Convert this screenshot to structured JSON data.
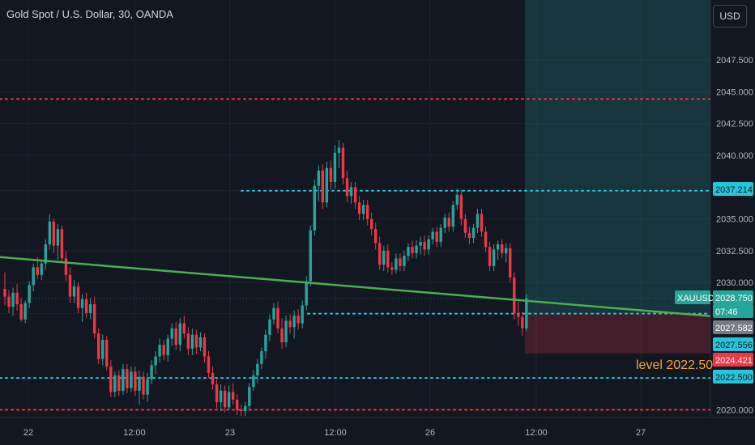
{
  "title": "Gold Spot / U.S. Dollar, 30, OANDA",
  "currency_button": "USD",
  "colors": {
    "background": "#131722",
    "up": "#26a69a",
    "down": "#f23645",
    "trendline": "#4caf50",
    "level_cyan": "#26c6da",
    "level_red": "#f23645",
    "annotation": "#f7a533"
  },
  "chart_data": {
    "type": "candlestick",
    "symbol": "XAUUSD",
    "timeframe": "30",
    "ylim": [
      2019.5,
      2049.9
    ],
    "y_ticks": [
      "2020.000",
      "2022.500",
      "2027.556",
      "2030.000",
      "2032.500",
      "2035.000",
      "2037.214",
      "2040.000",
      "2042.500",
      "2045.000",
      "2047.500"
    ],
    "x_ticks": [
      "22",
      "12:00",
      "23",
      "12:00",
      "26",
      "12:00",
      "27"
    ],
    "candles": [
      [
        2029.5,
        2030.8,
        2028.2,
        2028.9
      ],
      [
        2028.9,
        2029.4,
        2027.6,
        2028.1
      ],
      [
        2028.1,
        2029.6,
        2027.4,
        2029.2
      ],
      [
        2029.2,
        2029.9,
        2027.8,
        2028.3
      ],
      [
        2028.3,
        2028.8,
        2026.9,
        2027.1
      ],
      [
        2027.1,
        2028.6,
        2026.8,
        2028.4
      ],
      [
        2028.4,
        2030.1,
        2028.0,
        2029.8
      ],
      [
        2029.8,
        2031.5,
        2029.3,
        2031.2
      ],
      [
        2031.2,
        2032.0,
        2030.3,
        2030.6
      ],
      [
        2030.6,
        2031.8,
        2030.2,
        2031.5
      ],
      [
        2031.5,
        2033.4,
        2031.0,
        2033.0
      ],
      [
        2033.0,
        2035.4,
        2032.6,
        2034.8
      ],
      [
        2034.8,
        2035.0,
        2032.3,
        2032.9
      ],
      [
        2032.9,
        2034.6,
        2031.8,
        2034.2
      ],
      [
        2034.2,
        2034.5,
        2031.6,
        2031.9
      ],
      [
        2031.9,
        2032.5,
        2030.1,
        2030.6
      ],
      [
        2030.6,
        2031.2,
        2028.4,
        2028.9
      ],
      [
        2028.9,
        2030.2,
        2028.4,
        2029.7
      ],
      [
        2029.7,
        2030.0,
        2027.6,
        2028.0
      ],
      [
        2028.0,
        2029.1,
        2026.9,
        2028.7
      ],
      [
        2028.7,
        2029.2,
        2027.2,
        2027.6
      ],
      [
        2027.6,
        2028.8,
        2027.1,
        2028.3
      ],
      [
        2028.3,
        2028.9,
        2025.6,
        2026.0
      ],
      [
        2026.0,
        2026.4,
        2023.6,
        2024.0
      ],
      [
        2024.0,
        2025.9,
        2023.5,
        2025.5
      ],
      [
        2025.5,
        2025.8,
        2023.1,
        2023.4
      ],
      [
        2023.4,
        2023.9,
        2021.0,
        2021.4
      ],
      [
        2021.4,
        2023.0,
        2021.0,
        2022.7
      ],
      [
        2022.7,
        2023.1,
        2021.1,
        2021.5
      ],
      [
        2021.5,
        2023.6,
        2021.2,
        2023.2
      ],
      [
        2023.2,
        2023.6,
        2021.3,
        2021.7
      ],
      [
        2021.7,
        2023.4,
        2021.4,
        2023.0
      ],
      [
        2023.0,
        2023.4,
        2021.1,
        2021.5
      ],
      [
        2021.5,
        2023.1,
        2020.4,
        2022.6
      ],
      [
        2022.6,
        2023.0,
        2020.8,
        2021.2
      ],
      [
        2021.2,
        2022.9,
        2020.6,
        2022.4
      ],
      [
        2022.4,
        2023.9,
        2022.0,
        2023.5
      ],
      [
        2023.5,
        2024.6,
        2022.8,
        2024.2
      ],
      [
        2024.2,
        2025.6,
        2023.7,
        2025.1
      ],
      [
        2025.1,
        2025.5,
        2023.9,
        2024.3
      ],
      [
        2024.3,
        2025.9,
        2023.8,
        2025.6
      ],
      [
        2025.6,
        2026.8,
        2025.0,
        2026.4
      ],
      [
        2026.4,
        2026.9,
        2024.7,
        2025.1
      ],
      [
        2025.1,
        2027.2,
        2024.6,
        2026.8
      ],
      [
        2026.8,
        2027.4,
        2025.6,
        2026.0
      ],
      [
        2026.0,
        2026.5,
        2024.3,
        2024.8
      ],
      [
        2024.8,
        2026.4,
        2024.3,
        2025.9
      ],
      [
        2025.9,
        2026.3,
        2024.4,
        2024.9
      ],
      [
        2024.9,
        2026.1,
        2024.6,
        2025.7
      ],
      [
        2025.7,
        2026.0,
        2023.7,
        2024.2
      ],
      [
        2024.2,
        2024.6,
        2022.5,
        2022.9
      ],
      [
        2022.9,
        2023.4,
        2021.6,
        2022.0
      ],
      [
        2022.0,
        2022.4,
        2020.1,
        2020.6
      ],
      [
        2020.6,
        2022.0,
        2019.9,
        2021.5
      ],
      [
        2021.5,
        2021.9,
        2019.8,
        2020.2
      ],
      [
        2020.2,
        2021.9,
        2020.0,
        2021.4
      ],
      [
        2021.4,
        2022.1,
        2020.4,
        2020.8
      ],
      [
        2020.8,
        2021.2,
        2019.6,
        2020.0
      ],
      [
        2020.0,
        2020.4,
        2019.5,
        2019.9
      ],
      [
        2019.9,
        2020.6,
        2019.5,
        2020.3
      ],
      [
        2020.3,
        2022.1,
        2019.9,
        2021.8
      ],
      [
        2021.8,
        2023.1,
        2021.5,
        2022.7
      ],
      [
        2022.7,
        2024.0,
        2022.1,
        2023.6
      ],
      [
        2023.6,
        2024.9,
        2023.2,
        2024.6
      ],
      [
        2024.6,
        2026.3,
        2024.0,
        2025.9
      ],
      [
        2025.9,
        2027.5,
        2025.4,
        2027.1
      ],
      [
        2027.1,
        2028.4,
        2026.7,
        2028.0
      ],
      [
        2028.0,
        2028.5,
        2026.0,
        2026.4
      ],
      [
        2026.4,
        2027.2,
        2024.8,
        2025.3
      ],
      [
        2025.3,
        2027.4,
        2024.9,
        2027.0
      ],
      [
        2027.0,
        2027.5,
        2026.0,
        2026.5
      ],
      [
        2026.5,
        2027.8,
        2025.6,
        2027.4
      ],
      [
        2027.4,
        2027.9,
        2026.3,
        2026.8
      ],
      [
        2026.8,
        2028.6,
        2026.4,
        2028.2
      ],
      [
        2028.2,
        2030.5,
        2027.8,
        2030.1
      ],
      [
        2030.1,
        2034.5,
        2029.7,
        2034.1
      ],
      [
        2034.1,
        2038.1,
        2033.7,
        2037.6
      ],
      [
        2037.6,
        2039.2,
        2036.4,
        2038.8
      ],
      [
        2038.8,
        2039.3,
        2035.8,
        2036.3
      ],
      [
        2036.3,
        2039.5,
        2035.9,
        2039.0
      ],
      [
        2039.0,
        2039.6,
        2037.3,
        2037.9
      ],
      [
        2037.9,
        2040.8,
        2037.4,
        2040.2
      ],
      [
        2040.2,
        2041.2,
        2039.0,
        2040.6
      ],
      [
        2040.6,
        2041.0,
        2037.7,
        2038.2
      ],
      [
        2038.2,
        2038.8,
        2036.3,
        2036.8
      ],
      [
        2036.8,
        2037.9,
        2036.2,
        2037.5
      ],
      [
        2037.5,
        2037.9,
        2035.8,
        2036.3
      ],
      [
        2036.3,
        2036.8,
        2034.9,
        2035.4
      ],
      [
        2035.4,
        2036.5,
        2034.9,
        2036.1
      ],
      [
        2036.1,
        2036.5,
        2034.5,
        2035.0
      ],
      [
        2035.0,
        2035.5,
        2033.7,
        2034.2
      ],
      [
        2034.2,
        2034.7,
        2032.6,
        2033.1
      ],
      [
        2033.1,
        2033.6,
        2031.0,
        2031.4
      ],
      [
        2031.4,
        2032.9,
        2030.9,
        2032.5
      ],
      [
        2032.5,
        2033.0,
        2030.8,
        2031.2
      ],
      [
        2031.2,
        2031.6,
        2030.6,
        2031.0
      ],
      [
        2031.0,
        2032.3,
        2030.7,
        2031.9
      ],
      [
        2031.9,
        2032.3,
        2030.9,
        2031.3
      ],
      [
        2031.3,
        2032.5,
        2030.9,
        2032.1
      ],
      [
        2032.1,
        2033.1,
        2031.7,
        2032.8
      ],
      [
        2032.8,
        2033.3,
        2031.9,
        2032.3
      ],
      [
        2032.3,
        2033.3,
        2031.9,
        2032.9
      ],
      [
        2032.9,
        2033.6,
        2032.2,
        2033.2
      ],
      [
        2033.2,
        2033.7,
        2032.1,
        2032.6
      ],
      [
        2032.6,
        2033.7,
        2032.2,
        2033.4
      ],
      [
        2033.4,
        2034.3,
        2033.0,
        2034.0
      ],
      [
        2034.0,
        2034.4,
        2032.8,
        2033.2
      ],
      [
        2033.2,
        2034.6,
        2032.8,
        2034.3
      ],
      [
        2034.3,
        2035.4,
        2033.9,
        2035.1
      ],
      [
        2035.1,
        2035.5,
        2034.0,
        2034.4
      ],
      [
        2034.4,
        2036.4,
        2034.0,
        2036.1
      ],
      [
        2036.1,
        2037.4,
        2035.7,
        2036.9
      ],
      [
        2036.9,
        2037.3,
        2034.5,
        2035.0
      ],
      [
        2035.0,
        2035.4,
        2033.5,
        2033.9
      ],
      [
        2033.9,
        2034.4,
        2033.0,
        2033.5
      ],
      [
        2033.5,
        2034.6,
        2033.1,
        2034.3
      ],
      [
        2034.3,
        2035.8,
        2033.9,
        2035.4
      ],
      [
        2035.4,
        2035.8,
        2033.6,
        2034.0
      ],
      [
        2034.0,
        2034.4,
        2032.4,
        2032.8
      ],
      [
        2032.8,
        2033.2,
        2030.9,
        2031.3
      ],
      [
        2031.3,
        2033.0,
        2030.9,
        2032.6
      ],
      [
        2032.6,
        2033.3,
        2031.8,
        2033.0
      ],
      [
        2033.0,
        2033.4,
        2031.9,
        2032.3
      ],
      [
        2032.3,
        2033.1,
        2031.6,
        2032.7
      ],
      [
        2032.7,
        2033.1,
        2030.0,
        2030.4
      ],
      [
        2030.4,
        2030.8,
        2027.1,
        2027.6
      ],
      [
        2027.6,
        2028.5,
        2026.6,
        2027.3
      ],
      [
        2027.3,
        2027.7,
        2025.8,
        2026.4
      ],
      [
        2026.4,
        2029.1,
        2026.2,
        2028.75
      ]
    ],
    "levels": [
      {
        "price": 2044.421,
        "color": "red",
        "from": "start"
      },
      {
        "price": 2037.214,
        "color": "cyan",
        "from": "2040.000-high"
      },
      {
        "price": 2027.556,
        "color": "cyan",
        "from": "2030.000-breakout"
      },
      {
        "price": 2022.5,
        "color": "cyan",
        "from": "start"
      },
      {
        "price": 2020.0,
        "color": "red",
        "from": "start"
      }
    ],
    "trendline": {
      "from_price": 2032.0,
      "to_price": 2027.556
    },
    "position": {
      "entry": 2027.556,
      "target": 2049.9,
      "stop": 2024.421
    },
    "price_labels": [
      {
        "label": "XAUUSD",
        "kind": "symbol"
      },
      {
        "label": "2028.750",
        "kind": "last"
      },
      {
        "label": "07:46",
        "kind": "countdown"
      },
      {
        "label": "2027.582",
        "kind": "gray"
      },
      {
        "label": "2027.556",
        "kind": "cyan"
      },
      {
        "label": "2024.421",
        "kind": "red"
      },
      {
        "label": "2022.500",
        "kind": "cyan"
      },
      {
        "label": "2037.214",
        "kind": "cyan"
      }
    ],
    "annotation": "level 2022.50"
  }
}
